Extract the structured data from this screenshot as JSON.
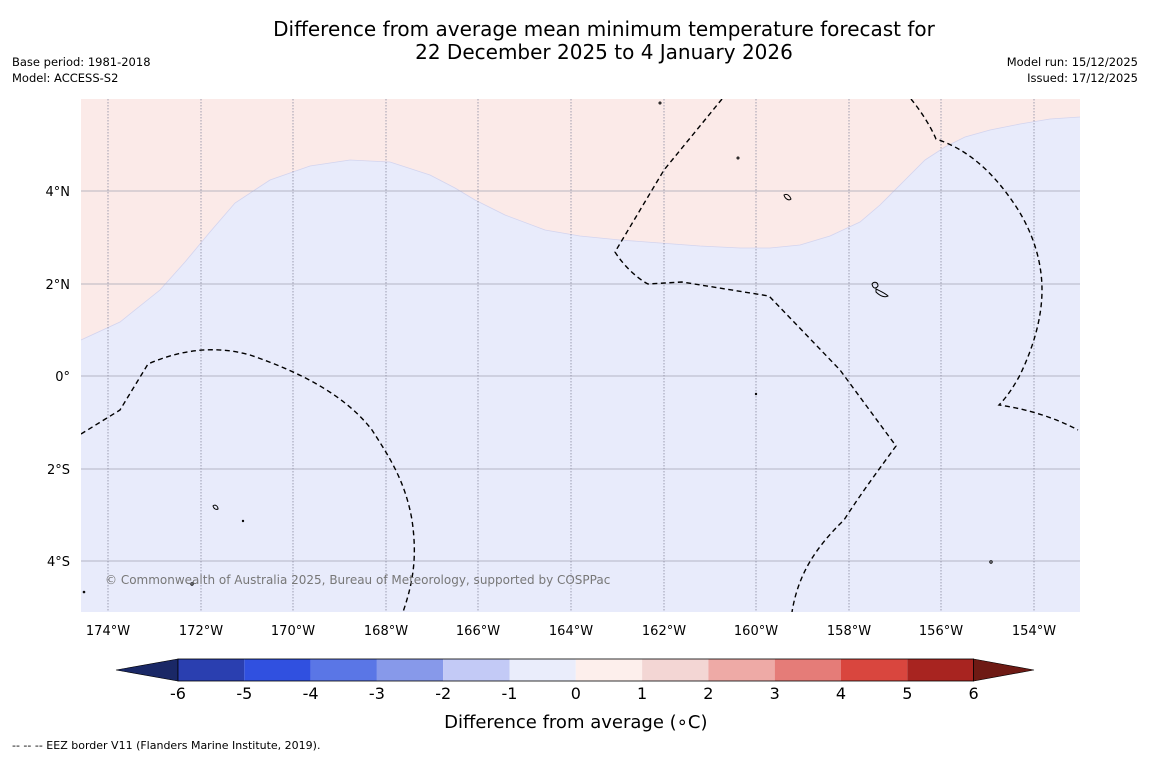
{
  "header": {
    "title_line1": "Difference from average mean minimum temperature forecast for",
    "title_line2": "22 December 2025 to 4 January 2026",
    "base_period": "Base period: 1981-2018",
    "model": "Model: ACCESS-S2",
    "model_run": "Model run: 15/12/2025",
    "issued": "Issued: 17/12/2025"
  },
  "map": {
    "latitude_labels": [
      "4°N",
      "2°N",
      "0°",
      "2°S",
      "4°S"
    ],
    "longitude_labels": [
      "174°W",
      "172°W",
      "170°W",
      "168°W",
      "166°W",
      "164°W",
      "162°W",
      "160°W",
      "158°W",
      "156°W",
      "154°W"
    ],
    "copyright": "© Commonwealth of Australia 2025, Bureau of Meteorology, supported by COSPPac",
    "colors": {
      "warm_fill": "#fbeae8",
      "cool_fill": "#e8ebfb"
    }
  },
  "colorbar": {
    "title": "Difference from average (∘C)",
    "tick_labels": [
      "-6",
      "-5",
      "-4",
      "-3",
      "-2",
      "-1",
      "0",
      "1",
      "2",
      "3",
      "4",
      "5",
      "6"
    ],
    "colors": {
      "under": "#1a2866",
      "bins": [
        "#2a3fb0",
        "#3050e0",
        "#5a76e6",
        "#8799ea",
        "#c3caf6",
        "#eaedfb",
        "#fdefec",
        "#f3d6d4",
        "#eeaaa6",
        "#e57c78",
        "#d9463e",
        "#a82420"
      ],
      "over": "#6e1a14"
    }
  },
  "footnote": "--  --  -- EEZ border V11 (Flanders Marine Institute, 2019)."
}
